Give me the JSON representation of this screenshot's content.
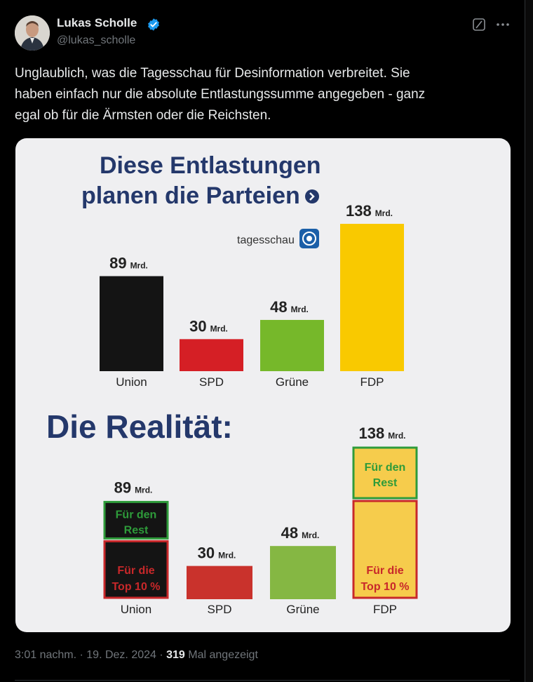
{
  "author": {
    "name": "Lukas Scholle",
    "handle": "@lukas_scholle",
    "verified_color": "#1d9bf0"
  },
  "icons": [
    "grok-icon",
    "more-icon",
    "verified-icon",
    "avatar"
  ],
  "tweet": {
    "lines": [
      "Unglaublich, was die Tagesschau für Desinformation verbreitet. Sie",
      "haben einfach nur die absolute Entlastungssumme angegeben - ganz",
      "egal ob für die Ärmsten oder die Reichsten."
    ]
  },
  "meta": {
    "time": "3:01 nachm.",
    "sep1": " · ",
    "date": "19. Dez. 2024",
    "sep2": " · ",
    "views": "319",
    "views_label": " Mal angezeigt"
  },
  "chart_data": [
    {
      "type": "bar",
      "title_line1": "Diese Entlastungen",
      "title_line2": "planen die Parteien",
      "source": "tagesschau",
      "unit": "Mrd.",
      "categories": [
        "Union",
        "SPD",
        "Grüne",
        "FDP"
      ],
      "values": [
        89,
        30,
        48,
        138
      ],
      "colors": [
        "#141414",
        "#d51f25",
        "#76b82a",
        "#f9c900"
      ]
    },
    {
      "type": "bar",
      "title": "Die Realität:",
      "unit": "Mrd.",
      "categories": [
        "Union",
        "SPD",
        "Grüne",
        "FDP"
      ],
      "values": [
        89,
        30,
        48,
        138
      ],
      "segment_labels": {
        "top": [
          "Für den",
          "Rest"
        ],
        "bottom": [
          "Für die",
          "Top 10 %"
        ]
      },
      "colors": [
        "#141414",
        "#c9322c",
        "#85b743",
        "#f6cc4c"
      ],
      "outline_colors": {
        "rest": "#2e9b3a",
        "top10": "#c8282a"
      }
    }
  ]
}
